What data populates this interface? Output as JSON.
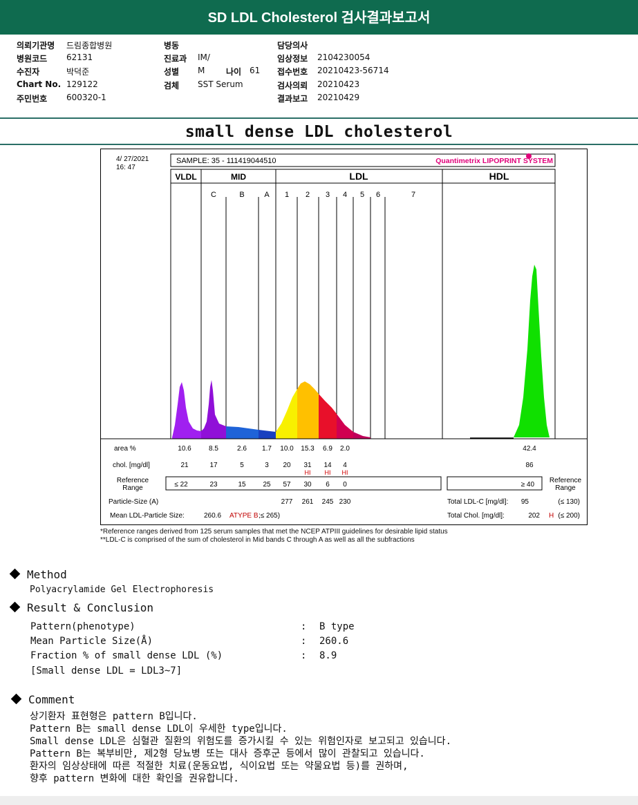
{
  "report": {
    "title": "SD LDL Cholesterol 검사결과보고서",
    "subtitle": "small dense LDL cholesterol"
  },
  "patient": {
    "col1": [
      {
        "label": "의뢰기관명",
        "value": "드림종합병원"
      },
      {
        "label": "병원코드",
        "value": "62131"
      },
      {
        "label": "수진자",
        "value": "박덕준"
      },
      {
        "label": "Chart No.",
        "value": "129122"
      },
      {
        "label": "주민번호",
        "value": "600320-1"
      }
    ],
    "col2": [
      {
        "label": "병동",
        "value": ""
      },
      {
        "label": "진료과",
        "value": "IM/"
      },
      {
        "label": "성별",
        "value": "M"
      },
      {
        "label": "검체",
        "value": "SST Serum"
      }
    ],
    "age": {
      "label": "나이",
      "value": "61"
    },
    "col3": [
      {
        "label": "담당의사",
        "value": ""
      },
      {
        "label": "임상정보",
        "value": "2104230054"
      },
      {
        "label": "접수번호",
        "value": "20210423-56714"
      },
      {
        "label": "검사의뢰",
        "value": "20210423"
      },
      {
        "label": "결과보고",
        "value": "20210429"
      }
    ]
  },
  "chart_data": {
    "type": "area",
    "date": "4/ 27/2021",
    "time": "16: 47",
    "sample": "SAMPLE:   35 - 111419044510",
    "brand": "Quantimetrix LIPOPRINT SYSTEM",
    "groups": [
      "VLDL",
      "MID",
      "LDL",
      "HDL"
    ],
    "bands": [
      "C",
      "B",
      "A",
      "1",
      "2",
      "3",
      "4",
      "5",
      "6",
      "7"
    ],
    "area_label": "area %",
    "area_values": [
      "10.6",
      "8.5",
      "2.6",
      "1.7",
      "10.0",
      "15.3",
      "6.9",
      "2.0",
      "42.4"
    ],
    "chol_label": "chol. [mg/dl]",
    "chol_values": [
      "21",
      "17",
      "5",
      "3",
      "20",
      "31",
      "14",
      "4",
      "86"
    ],
    "hi_flags": [
      "HI",
      "HI",
      "HI"
    ],
    "ref_label": "Reference\nRange",
    "ref_values": [
      "≤ 22",
      "23",
      "15",
      "25",
      "57",
      "30",
      "6",
      "0"
    ],
    "ref_hdl": "≥ 40",
    "particle_size_label": "Particle-Size (A)",
    "particle_size_values": [
      "277",
      "261",
      "245",
      "230"
    ],
    "total_ldlc_label": "Total LDL-C [mg/dl]:",
    "total_ldlc_value": "95",
    "total_ldlc_ref": "(≤ 130)",
    "total_chol_label": "Total Chol. [mg/dl]:",
    "total_chol_value": "202",
    "total_chol_flag": "H",
    "total_chol_ref": "(≤ 200)",
    "mean_size_label": "Mean LDL-Particle Size:",
    "mean_size_value": "260.6",
    "mean_size_type": "ATYPE B",
    "mean_size_ref": ";≤ 265)",
    "footnote1": "*Reference ranges derived from 125 serum samples that met the NCEP ATPIII guidelines for desirable lipid status",
    "footnote2": "**LDL-C is comprised of the sum of cholesterol in Mid bands C through A as well as all the subfractions"
  },
  "method": {
    "heading": "Method",
    "text": "Polyacrylamide Gel Electrophoresis"
  },
  "result": {
    "heading": "Result & Conclusion",
    "rows": [
      {
        "label": "Pattern(phenotype)",
        "value": "B type"
      },
      {
        "label": "Mean Particle Size(Å)",
        "value": "260.6"
      },
      {
        "label": "Fraction % of small dense LDL (%)",
        "value": "8.9"
      }
    ],
    "note": "[Small dense LDL = LDL3~7]"
  },
  "comment": {
    "heading": "Comment",
    "lines": [
      "상기환자 표현형은 pattern B입니다.",
      "Pattern B는 small dense LDL이 우세한 type입니다.",
      "Small dense LDL은 심혈관 질환의 위험도를 증가시킬 수 있는 위험인자로 보고되고 있습니다.",
      "Pattern B는 복부비만, 제2형 당뇨병 또는 대사 증후군 등에서 많이 관찰되고 있습니다.",
      "환자의 임상상태에 따른 적절한 치료(운동요법, 식이요법 또는 약물요법 등)를 권하며,",
      "향후 pattern 변화에 대한 확인을 권유합니다."
    ]
  }
}
